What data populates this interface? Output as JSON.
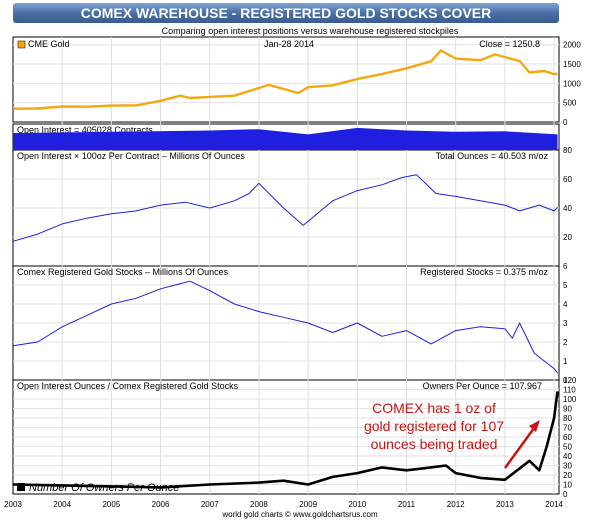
{
  "title": "COMEX WAREHOUSE - REGISTERED GOLD STOCKS COVER",
  "subtitle": "Comparing open interest positions versus warehouse registered stockpiles",
  "footer": "world gold charts © www.goldchartsrus.com",
  "colors": {
    "title_bar": "#4a6fa5",
    "gold": "#f3a712",
    "blue": "#1f1fe0",
    "black": "#000000",
    "annotation": "#cc1111"
  },
  "x_axis": {
    "years": [
      "2003",
      "2004",
      "2005",
      "2006",
      "2007",
      "2008",
      "2009",
      "2010",
      "2011",
      "2012",
      "2013",
      "2014"
    ],
    "range": [
      2003.0,
      2014.1
    ]
  },
  "chart_data": [
    {
      "type": "line",
      "legend": "CME Gold",
      "date_label": "Jan-28  2014",
      "readout": "Close = 1250.8",
      "ylim": [
        0,
        2200
      ],
      "yticks": [
        "0",
        "500",
        "1000",
        "1500",
        "2000"
      ],
      "x": [
        2003.0,
        2003.5,
        2004.0,
        2004.5,
        2005.0,
        2005.5,
        2006.0,
        2006.4,
        2006.6,
        2007.0,
        2007.5,
        2008.0,
        2008.2,
        2008.8,
        2009.0,
        2009.5,
        2010.0,
        2010.5,
        2011.0,
        2011.5,
        2011.7,
        2012.0,
        2012.5,
        2012.8,
        2013.0,
        2013.3,
        2013.5,
        2013.8,
        2014.0,
        2014.07
      ],
      "y": [
        345,
        350,
        400,
        395,
        425,
        430,
        550,
        680,
        620,
        650,
        680,
        880,
        960,
        750,
        900,
        950,
        1110,
        1240,
        1390,
        1570,
        1850,
        1640,
        1600,
        1750,
        1680,
        1580,
        1280,
        1320,
        1240,
        1251
      ]
    },
    {
      "type": "area",
      "label": "Open Interest = 405028 Contracts",
      "x": [
        2003.0,
        2005.0,
        2007.0,
        2008.0,
        2009.0,
        2010.0,
        2011.0,
        2012.0,
        2013.0,
        2014.07
      ],
      "y": [
        0.65,
        0.7,
        0.75,
        0.8,
        0.6,
        0.85,
        0.75,
        0.7,
        0.72,
        0.6
      ]
    },
    {
      "type": "line",
      "label": "Open Interest × 100oz Per Contract – Millions Of Ounces",
      "readout": "Total Ounces = 40.503 m/oz",
      "ylim": [
        0,
        80
      ],
      "yticks": [
        "20",
        "40",
        "60",
        "80"
      ],
      "x": [
        2003.0,
        2003.5,
        2004.0,
        2004.5,
        2005.0,
        2005.5,
        2006.0,
        2006.5,
        2007.0,
        2007.5,
        2007.8,
        2008.0,
        2008.5,
        2008.9,
        2009.5,
        2010.0,
        2010.5,
        2010.9,
        2011.2,
        2011.6,
        2012.0,
        2012.5,
        2013.0,
        2013.3,
        2013.7,
        2014.0,
        2014.07
      ],
      "y": [
        17,
        22,
        29,
        33,
        36,
        38,
        42,
        44,
        40,
        45,
        50,
        57,
        40,
        28,
        45,
        52,
        56,
        61,
        63,
        50,
        48,
        45,
        42,
        38,
        42,
        38,
        40.5
      ]
    },
    {
      "type": "line",
      "label": "Comex Registered Gold Stocks – Millions Of Ounces",
      "readout": "Registered Stocks = 0.375 m/oz",
      "ylim": [
        0,
        6
      ],
      "yticks": [
        "0",
        "1",
        "2",
        "3",
        "4",
        "5",
        "6"
      ],
      "x": [
        2003.0,
        2003.5,
        2004.0,
        2004.5,
        2005.0,
        2005.5,
        2006.0,
        2006.3,
        2006.6,
        2007.0,
        2007.5,
        2008.0,
        2008.5,
        2009.0,
        2009.5,
        2010.0,
        2010.5,
        2011.0,
        2011.5,
        2012.0,
        2012.5,
        2013.0,
        2013.15,
        2013.3,
        2013.6,
        2014.0,
        2014.07
      ],
      "y": [
        1.8,
        2.0,
        2.8,
        3.4,
        4.0,
        4.3,
        4.8,
        5.0,
        5.2,
        4.7,
        4.0,
        3.6,
        3.3,
        3.0,
        2.5,
        3.0,
        2.3,
        2.6,
        1.9,
        2.6,
        2.8,
        2.7,
        2.2,
        3.0,
        1.4,
        0.6,
        0.375
      ]
    },
    {
      "type": "line",
      "label": "Open Interest Ounces / Comex Registered Gold Stocks",
      "readout": "Owners Per Ounce = 107.967",
      "legend": "Number Of Owners Per Ounce",
      "ylim": [
        0,
        120
      ],
      "yticks": [
        "0",
        "10",
        "20",
        "30",
        "40",
        "50",
        "60",
        "70",
        "80",
        "90",
        "100",
        "110",
        "120"
      ],
      "x": [
        2003.0,
        2004.0,
        2005.0,
        2006.0,
        2007.0,
        2008.0,
        2008.5,
        2009.0,
        2009.5,
        2010.0,
        2010.5,
        2011.0,
        2011.5,
        2011.8,
        2012.0,
        2012.5,
        2013.0,
        2013.5,
        2013.7,
        2013.85,
        2014.0,
        2014.07
      ],
      "y": [
        10,
        9,
        8,
        7,
        10,
        12,
        14,
        10,
        18,
        22,
        28,
        25,
        28,
        30,
        22,
        17,
        15,
        35,
        25,
        50,
        80,
        108
      ],
      "annotation": [
        "COMEX has 1 oz of",
        "gold registered for 107",
        "ounces being traded"
      ]
    }
  ]
}
